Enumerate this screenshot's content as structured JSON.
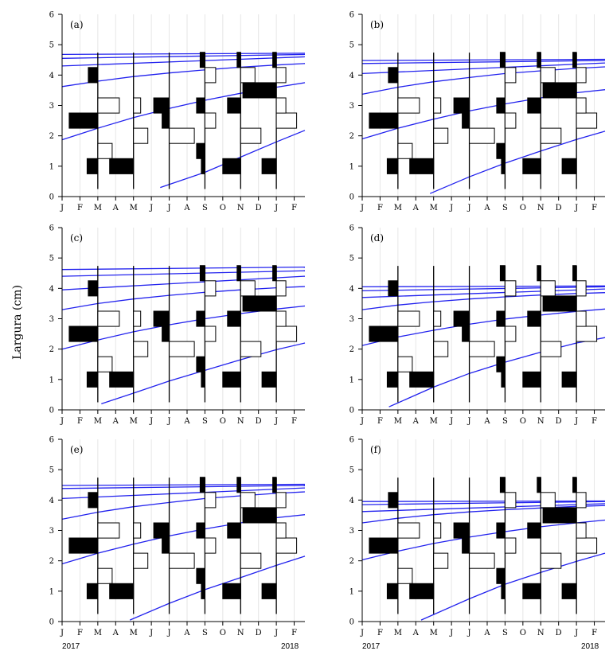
{
  "ylabel": "Largura  (cm)",
  "year_labels": [
    "2017",
    "2018"
  ],
  "colors": {
    "growth_curve": "#2222ee",
    "filled_bar": "#000000",
    "axis": "#000000",
    "sample_line": "#000000"
  },
  "chart_data": {
    "type": "length-frequency with growth curves",
    "xlabel": "",
    "ylabel": "Largura  (cm)",
    "x_tick_labels": [
      "J",
      "F",
      "M",
      "A",
      "M",
      "J",
      "J",
      "A",
      "S",
      "O",
      "N",
      "D",
      "J",
      "F"
    ],
    "x_range_months": [
      0,
      13.6
    ],
    "ylim": [
      0,
      6
    ],
    "y_ticks": [
      0,
      1,
      2,
      3,
      4,
      5,
      6
    ],
    "sample_months": [
      2,
      4,
      6,
      8,
      10,
      12
    ],
    "panels": [
      {
        "label": "(a)",
        "growth_curves": [
          {
            "points": [
              [
                0,
                1.87
              ],
              [
                2,
                2.25
              ],
              [
                4,
                2.6
              ],
              [
                6,
                2.9
              ],
              [
                8,
                3.17
              ],
              [
                10,
                3.4
              ],
              [
                12,
                3.6
              ],
              [
                13.6,
                3.75
              ]
            ]
          },
          {
            "points": [
              [
                5.5,
                0.3
              ],
              [
                8,
                0.8
              ],
              [
                10,
                1.3
              ],
              [
                12,
                1.8
              ],
              [
                13.6,
                2.18
              ]
            ]
          },
          {
            "points": [
              [
                0,
                3.62
              ],
              [
                2,
                3.8
              ],
              [
                4,
                3.95
              ],
              [
                6,
                4.07
              ],
              [
                8,
                4.17
              ],
              [
                10,
                4.26
              ],
              [
                12,
                4.33
              ],
              [
                13.6,
                4.38
              ]
            ]
          },
          {
            "points": [
              [
                0,
                4.3
              ],
              [
                13.6,
                4.6
              ]
            ]
          },
          {
            "points": [
              [
                0,
                4.55
              ],
              [
                13.6,
                4.68
              ]
            ]
          },
          {
            "points": [
              [
                0,
                4.68
              ],
              [
                13.6,
                4.72
              ]
            ]
          }
        ]
      },
      {
        "label": "(b)",
        "growth_curves": [
          {
            "points": [
              [
                0,
                1.9
              ],
              [
                2,
                2.25
              ],
              [
                4,
                2.55
              ],
              [
                6,
                2.82
              ],
              [
                8,
                3.05
              ],
              [
                10,
                3.25
              ],
              [
                12,
                3.42
              ],
              [
                13.6,
                3.52
              ]
            ]
          },
          {
            "points": [
              [
                3.8,
                0.1
              ],
              [
                6,
                0.65
              ],
              [
                8,
                1.1
              ],
              [
                10,
                1.5
              ],
              [
                12,
                1.88
              ],
              [
                13.6,
                2.15
              ]
            ]
          },
          {
            "points": [
              [
                0,
                3.37
              ],
              [
                2,
                3.6
              ],
              [
                4,
                3.78
              ],
              [
                6,
                3.92
              ],
              [
                8,
                4.05
              ],
              [
                10,
                4.14
              ],
              [
                12,
                4.22
              ],
              [
                13.6,
                4.27
              ]
            ]
          },
          {
            "points": [
              [
                0,
                4.05
              ],
              [
                13.6,
                4.4
              ]
            ]
          },
          {
            "points": [
              [
                0,
                4.38
              ],
              [
                13.6,
                4.48
              ]
            ]
          },
          {
            "points": [
              [
                0,
                4.48
              ],
              [
                13.6,
                4.52
              ]
            ]
          }
        ]
      },
      {
        "label": "(c)",
        "growth_curves": [
          {
            "points": [
              [
                0,
                2.0
              ],
              [
                2,
                2.3
              ],
              [
                4,
                2.57
              ],
              [
                6,
                2.8
              ],
              [
                8,
                3.0
              ],
              [
                10,
                3.17
              ],
              [
                12,
                3.32
              ],
              [
                13.6,
                3.42
              ]
            ]
          },
          {
            "points": [
              [
                2.2,
                0.2
              ],
              [
                4,
                0.55
              ],
              [
                6,
                0.95
              ],
              [
                8,
                1.3
              ],
              [
                10,
                1.65
              ],
              [
                12,
                1.98
              ],
              [
                13.6,
                2.2
              ]
            ]
          },
          {
            "points": [
              [
                0,
                3.3
              ],
              [
                2,
                3.5
              ],
              [
                4,
                3.65
              ],
              [
                6,
                3.77
              ],
              [
                8,
                3.87
              ],
              [
                10,
                3.95
              ],
              [
                12,
                4.02
              ],
              [
                13.6,
                4.06
              ]
            ]
          },
          {
            "points": [
              [
                0,
                3.95
              ],
              [
                13.6,
                4.4
              ]
            ]
          },
          {
            "points": [
              [
                0,
                4.4
              ],
              [
                13.6,
                4.58
              ]
            ]
          },
          {
            "points": [
              [
                0,
                4.62
              ],
              [
                13.6,
                4.7
              ]
            ]
          }
        ]
      },
      {
        "label": "(d)",
        "growth_curves": [
          {
            "points": [
              [
                0,
                2.12
              ],
              [
                2,
                2.4
              ],
              [
                4,
                2.62
              ],
              [
                6,
                2.82
              ],
              [
                8,
                2.99
              ],
              [
                10,
                3.12
              ],
              [
                12,
                3.24
              ],
              [
                13.6,
                3.32
              ]
            ]
          },
          {
            "points": [
              [
                1.5,
                0.1
              ],
              [
                4,
                0.75
              ],
              [
                6,
                1.2
              ],
              [
                8,
                1.57
              ],
              [
                10,
                1.9
              ],
              [
                12,
                2.2
              ],
              [
                13.6,
                2.38
              ]
            ]
          },
          {
            "points": [
              [
                0,
                3.3
              ],
              [
                2,
                3.45
              ],
              [
                4,
                3.56
              ],
              [
                6,
                3.65
              ],
              [
                8,
                3.72
              ],
              [
                10,
                3.78
              ],
              [
                12,
                3.83
              ],
              [
                13.6,
                3.86
              ]
            ]
          },
          {
            "points": [
              [
                0,
                3.7
              ],
              [
                13.6,
                3.98
              ]
            ]
          },
          {
            "points": [
              [
                0,
                3.92
              ],
              [
                13.6,
                4.05
              ]
            ]
          },
          {
            "points": [
              [
                0,
                4.05
              ],
              [
                13.6,
                4.08
              ]
            ]
          }
        ]
      },
      {
        "label": "(e)",
        "growth_curves": [
          {
            "points": [
              [
                0,
                1.9
              ],
              [
                2,
                2.25
              ],
              [
                4,
                2.55
              ],
              [
                6,
                2.82
              ],
              [
                8,
                3.05
              ],
              [
                10,
                3.25
              ],
              [
                12,
                3.42
              ],
              [
                13.6,
                3.52
              ]
            ]
          },
          {
            "points": [
              [
                3.8,
                0.05
              ],
              [
                6,
                0.6
              ],
              [
                8,
                1.05
              ],
              [
                10,
                1.45
              ],
              [
                12,
                1.85
              ],
              [
                13.6,
                2.15
              ]
            ]
          },
          {
            "points": [
              [
                0,
                3.37
              ],
              [
                2,
                3.6
              ],
              [
                4,
                3.78
              ],
              [
                6,
                3.92
              ],
              [
                8,
                4.05
              ],
              [
                10,
                4.14
              ],
              [
                12,
                4.22
              ],
              [
                13.6,
                4.27
              ]
            ]
          },
          {
            "points": [
              [
                0,
                4.05
              ],
              [
                13.6,
                4.4
              ]
            ]
          },
          {
            "points": [
              [
                0,
                4.38
              ],
              [
                13.6,
                4.48
              ]
            ]
          },
          {
            "points": [
              [
                0,
                4.48
              ],
              [
                13.6,
                4.52
              ]
            ]
          }
        ]
      },
      {
        "label": "(f)",
        "growth_curves": [
          {
            "points": [
              [
                0,
                2.03
              ],
              [
                2,
                2.32
              ],
              [
                4,
                2.57
              ],
              [
                6,
                2.78
              ],
              [
                8,
                2.96
              ],
              [
                10,
                3.12
              ],
              [
                12,
                3.25
              ],
              [
                13.6,
                3.34
              ]
            ]
          },
          {
            "points": [
              [
                3.3,
                0.05
              ],
              [
                6,
                0.75
              ],
              [
                8,
                1.23
              ],
              [
                10,
                1.62
              ],
              [
                12,
                1.98
              ],
              [
                13.6,
                2.25
              ]
            ]
          },
          {
            "points": [
              [
                0,
                3.25
              ],
              [
                2,
                3.4
              ],
              [
                4,
                3.52
              ],
              [
                6,
                3.61
              ],
              [
                8,
                3.68
              ],
              [
                10,
                3.74
              ],
              [
                12,
                3.79
              ],
              [
                13.6,
                3.82
              ]
            ]
          },
          {
            "points": [
              [
                0,
                3.62
              ],
              [
                13.6,
                3.88
              ]
            ]
          },
          {
            "points": [
              [
                0,
                3.85
              ],
              [
                13.6,
                3.95
              ]
            ]
          },
          {
            "points": [
              [
                0,
                3.95
              ],
              [
                13.6,
                3.97
              ]
            ]
          }
        ]
      }
    ],
    "histograms": [
      {
        "month": 2,
        "bins": [
          {
            "y": 1.0,
            "value": -0.45,
            "filled": true
          },
          {
            "y": 1.5,
            "value": 0.6,
            "filled": false
          },
          {
            "y": 2.5,
            "value": -1.2,
            "filled": true
          },
          {
            "y": 3.0,
            "value": 0.9,
            "filled": false
          },
          {
            "y": 4.0,
            "value": -0.4,
            "filled": true
          }
        ]
      },
      {
        "month": 4,
        "bins": [
          {
            "y": 1.0,
            "value": -1.0,
            "filled": true
          },
          {
            "y": 2.0,
            "value": 0.6,
            "filled": false
          },
          {
            "y": 3.0,
            "value": 0.3,
            "filled": false
          }
        ]
      },
      {
        "month": 6,
        "bins": [
          {
            "y": 2.0,
            "value": 1.05,
            "filled": false
          },
          {
            "y": 2.5,
            "value": -0.3,
            "filled": true
          },
          {
            "y": 3.0,
            "value": -0.65,
            "filled": true
          }
        ]
      },
      {
        "month": 8,
        "bins": [
          {
            "y": 1.0,
            "value": -0.15,
            "filled": true
          },
          {
            "y": 1.5,
            "value": -0.35,
            "filled": true
          },
          {
            "y": 2.5,
            "value": 0.45,
            "filled": false
          },
          {
            "y": 3.0,
            "value": -0.35,
            "filled": true
          },
          {
            "y": 4.0,
            "value": 0.45,
            "filled": false
          },
          {
            "y": 4.5,
            "value": -0.2,
            "filled": true
          }
        ]
      },
      {
        "month": 10,
        "bins": [
          {
            "y": 1.0,
            "value": -0.75,
            "filled": true
          },
          {
            "y": 2.0,
            "value": 0.85,
            "filled": false
          },
          {
            "y": 3.0,
            "value": -0.55,
            "filled": true
          },
          {
            "y": 4.0,
            "value": 0.6,
            "filled": false
          },
          {
            "y": 4.5,
            "value": -0.15,
            "filled": true
          }
        ]
      },
      {
        "month": 12,
        "bins": [
          {
            "y": 1.0,
            "value": -0.6,
            "filled": true
          },
          {
            "y": 2.5,
            "value": 0.85,
            "filled": false
          },
          {
            "y": 3.0,
            "value": 0.4,
            "filled": false
          },
          {
            "y": 3.5,
            "value": -1.4,
            "filled": true
          },
          {
            "y": 4.0,
            "value": 0.4,
            "filled": false
          },
          {
            "y": 4.5,
            "value": -0.15,
            "filled": true
          }
        ]
      }
    ]
  }
}
